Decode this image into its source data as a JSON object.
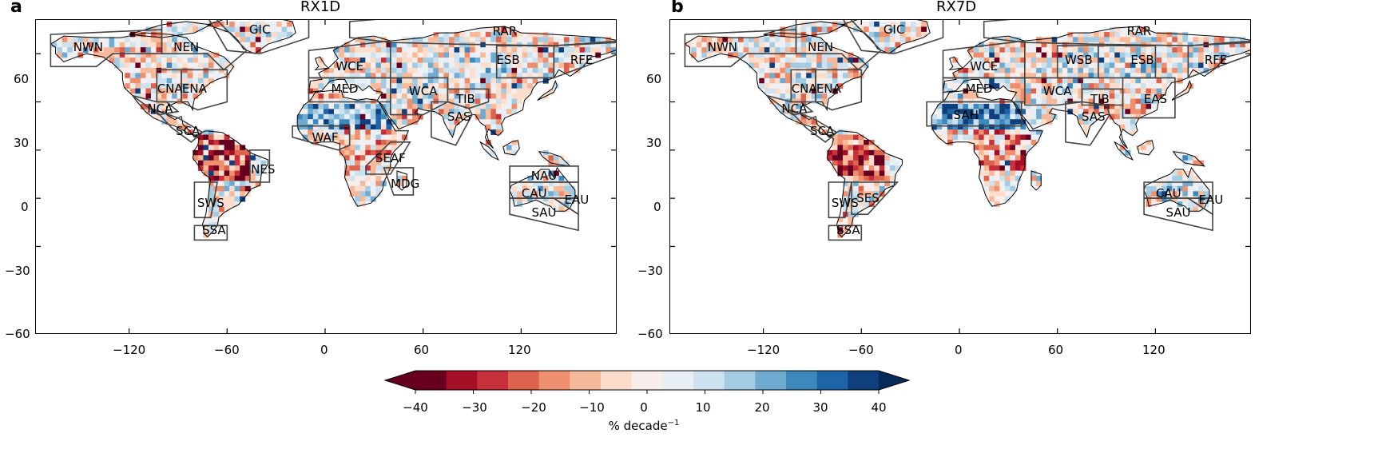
{
  "panels": [
    {
      "letter": "a",
      "title": "RX1D",
      "regions": [
        "NWN",
        "NEN",
        "GIC",
        "RAR",
        "CNA",
        "ENA",
        "WCE",
        "ESB",
        "RFE",
        "MED",
        "WCA",
        "TIB",
        "NCA",
        "SCA",
        "SAS",
        "WAF",
        "SEAF",
        "NES",
        "MDG",
        "NAU",
        "CAU",
        "EAU",
        "SAU",
        "SWS",
        "SSA"
      ]
    },
    {
      "letter": "b",
      "title": "RX7D",
      "regions": [
        "NWN",
        "NEN",
        "GIC",
        "RAR",
        "CNA",
        "ENA",
        "WCE",
        "WSB",
        "ESB",
        "RFE",
        "MED",
        "WCA",
        "TIB",
        "EAS",
        "NCA",
        "SCA",
        "SAH",
        "SAS",
        "CAU",
        "EAU",
        "SAU",
        "SWS",
        "SES",
        "SSA"
      ]
    }
  ],
  "axes": {
    "y_ticks": [
      "60",
      "30",
      "0",
      "−30",
      "−60"
    ],
    "x_ticks": [
      "−120",
      "−60",
      "0",
      "60",
      "120"
    ]
  },
  "colorbar": {
    "ticks": [
      "−40",
      "−30",
      "−20",
      "−10",
      "0",
      "10",
      "20",
      "30",
      "40"
    ],
    "unit_label": "% decade",
    "unit_exponent": "−1",
    "colors": [
      "#67001f",
      "#a50f26",
      "#c7303b",
      "#dc634d",
      "#ee9070",
      "#f6b99a",
      "#fbddcb",
      "#f7eeeb",
      "#e8f0f5",
      "#cde2ee",
      "#a3cbe2",
      "#6fabd0",
      "#3d88bd",
      "#1f64a6",
      "#0f3f7c"
    ],
    "low_extend": "#67001f",
    "high_extend": "#062b5a"
  }
}
